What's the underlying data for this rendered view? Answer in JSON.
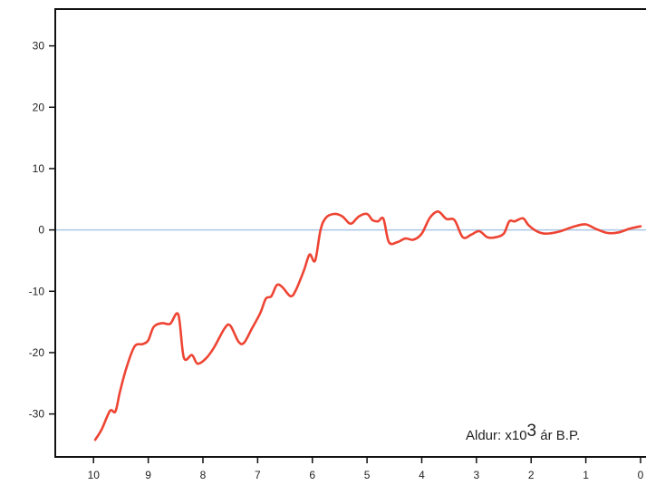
{
  "chart_data": {
    "type": "line",
    "title": "",
    "xlabel": "",
    "ylabel": "",
    "x_reversed": true,
    "xlim": [
      10.7,
      -0.1
    ],
    "ylim": [
      -37,
      36
    ],
    "x_ticks": [
      10,
      9,
      8,
      7,
      6,
      5,
      4,
      3,
      2,
      1,
      0
    ],
    "y_ticks": [
      30,
      20,
      10,
      0,
      -10,
      -20,
      -30
    ],
    "x_tick_labels": [
      "10",
      "9",
      "8",
      "7",
      "6",
      "5",
      "4",
      "3",
      "2",
      "1",
      "0"
    ],
    "y_tick_labels": [
      "30",
      "20",
      "10",
      "0",
      "-10",
      "-20",
      "-30"
    ],
    "zero_line": true,
    "grid": false,
    "annotation": {
      "prefix": "Aldur: x10",
      "sup": "3",
      "suffix": " ár B.P."
    },
    "colors": {
      "series": "#ee4433",
      "zero_line": "#a9c8e6",
      "axis": "#111111"
    },
    "series": [
      {
        "values": [
          [
            9.97,
            -34.2
          ],
          [
            9.85,
            -32.5
          ],
          [
            9.7,
            -29.5
          ],
          [
            9.6,
            -29.6
          ],
          [
            9.52,
            -26.5
          ],
          [
            9.4,
            -22.5
          ],
          [
            9.25,
            -19.0
          ],
          [
            9.1,
            -18.6
          ],
          [
            9.0,
            -18.0
          ],
          [
            8.9,
            -15.8
          ],
          [
            8.75,
            -15.2
          ],
          [
            8.6,
            -15.3
          ],
          [
            8.45,
            -13.8
          ],
          [
            8.35,
            -20.8
          ],
          [
            8.2,
            -20.4
          ],
          [
            8.1,
            -21.8
          ],
          [
            7.95,
            -21.0
          ],
          [
            7.8,
            -19.2
          ],
          [
            7.6,
            -16.0
          ],
          [
            7.5,
            -15.6
          ],
          [
            7.35,
            -18.2
          ],
          [
            7.25,
            -18.4
          ],
          [
            7.1,
            -16.0
          ],
          [
            6.95,
            -13.5
          ],
          [
            6.85,
            -11.2
          ],
          [
            6.75,
            -10.8
          ],
          [
            6.65,
            -9.0
          ],
          [
            6.55,
            -9.3
          ],
          [
            6.4,
            -10.8
          ],
          [
            6.3,
            -9.8
          ],
          [
            6.15,
            -6.5
          ],
          [
            6.05,
            -4.0
          ],
          [
            5.95,
            -5.0
          ],
          [
            5.85,
            0.0
          ],
          [
            5.75,
            2.0
          ],
          [
            5.6,
            2.6
          ],
          [
            5.45,
            2.2
          ],
          [
            5.3,
            1.0
          ],
          [
            5.15,
            2.2
          ],
          [
            5.0,
            2.6
          ],
          [
            4.9,
            1.6
          ],
          [
            4.8,
            1.4
          ],
          [
            4.7,
            1.8
          ],
          [
            4.6,
            -2.0
          ],
          [
            4.45,
            -2.0
          ],
          [
            4.3,
            -1.4
          ],
          [
            4.15,
            -1.6
          ],
          [
            4.0,
            -0.6
          ],
          [
            3.85,
            2.0
          ],
          [
            3.7,
            3.0
          ],
          [
            3.55,
            1.8
          ],
          [
            3.4,
            1.6
          ],
          [
            3.25,
            -1.2
          ],
          [
            3.1,
            -0.8
          ],
          [
            2.95,
            -0.2
          ],
          [
            2.8,
            -1.2
          ],
          [
            2.65,
            -1.2
          ],
          [
            2.5,
            -0.6
          ],
          [
            2.4,
            1.4
          ],
          [
            2.3,
            1.4
          ],
          [
            2.15,
            1.9
          ],
          [
            2.05,
            0.8
          ],
          [
            1.9,
            -0.2
          ],
          [
            1.75,
            -0.6
          ],
          [
            1.5,
            -0.3
          ],
          [
            1.2,
            0.6
          ],
          [
            1.0,
            0.9
          ],
          [
            0.8,
            0.1
          ],
          [
            0.6,
            -0.5
          ],
          [
            0.4,
            -0.4
          ],
          [
            0.2,
            0.2
          ],
          [
            0.0,
            0.6
          ]
        ]
      }
    ]
  }
}
